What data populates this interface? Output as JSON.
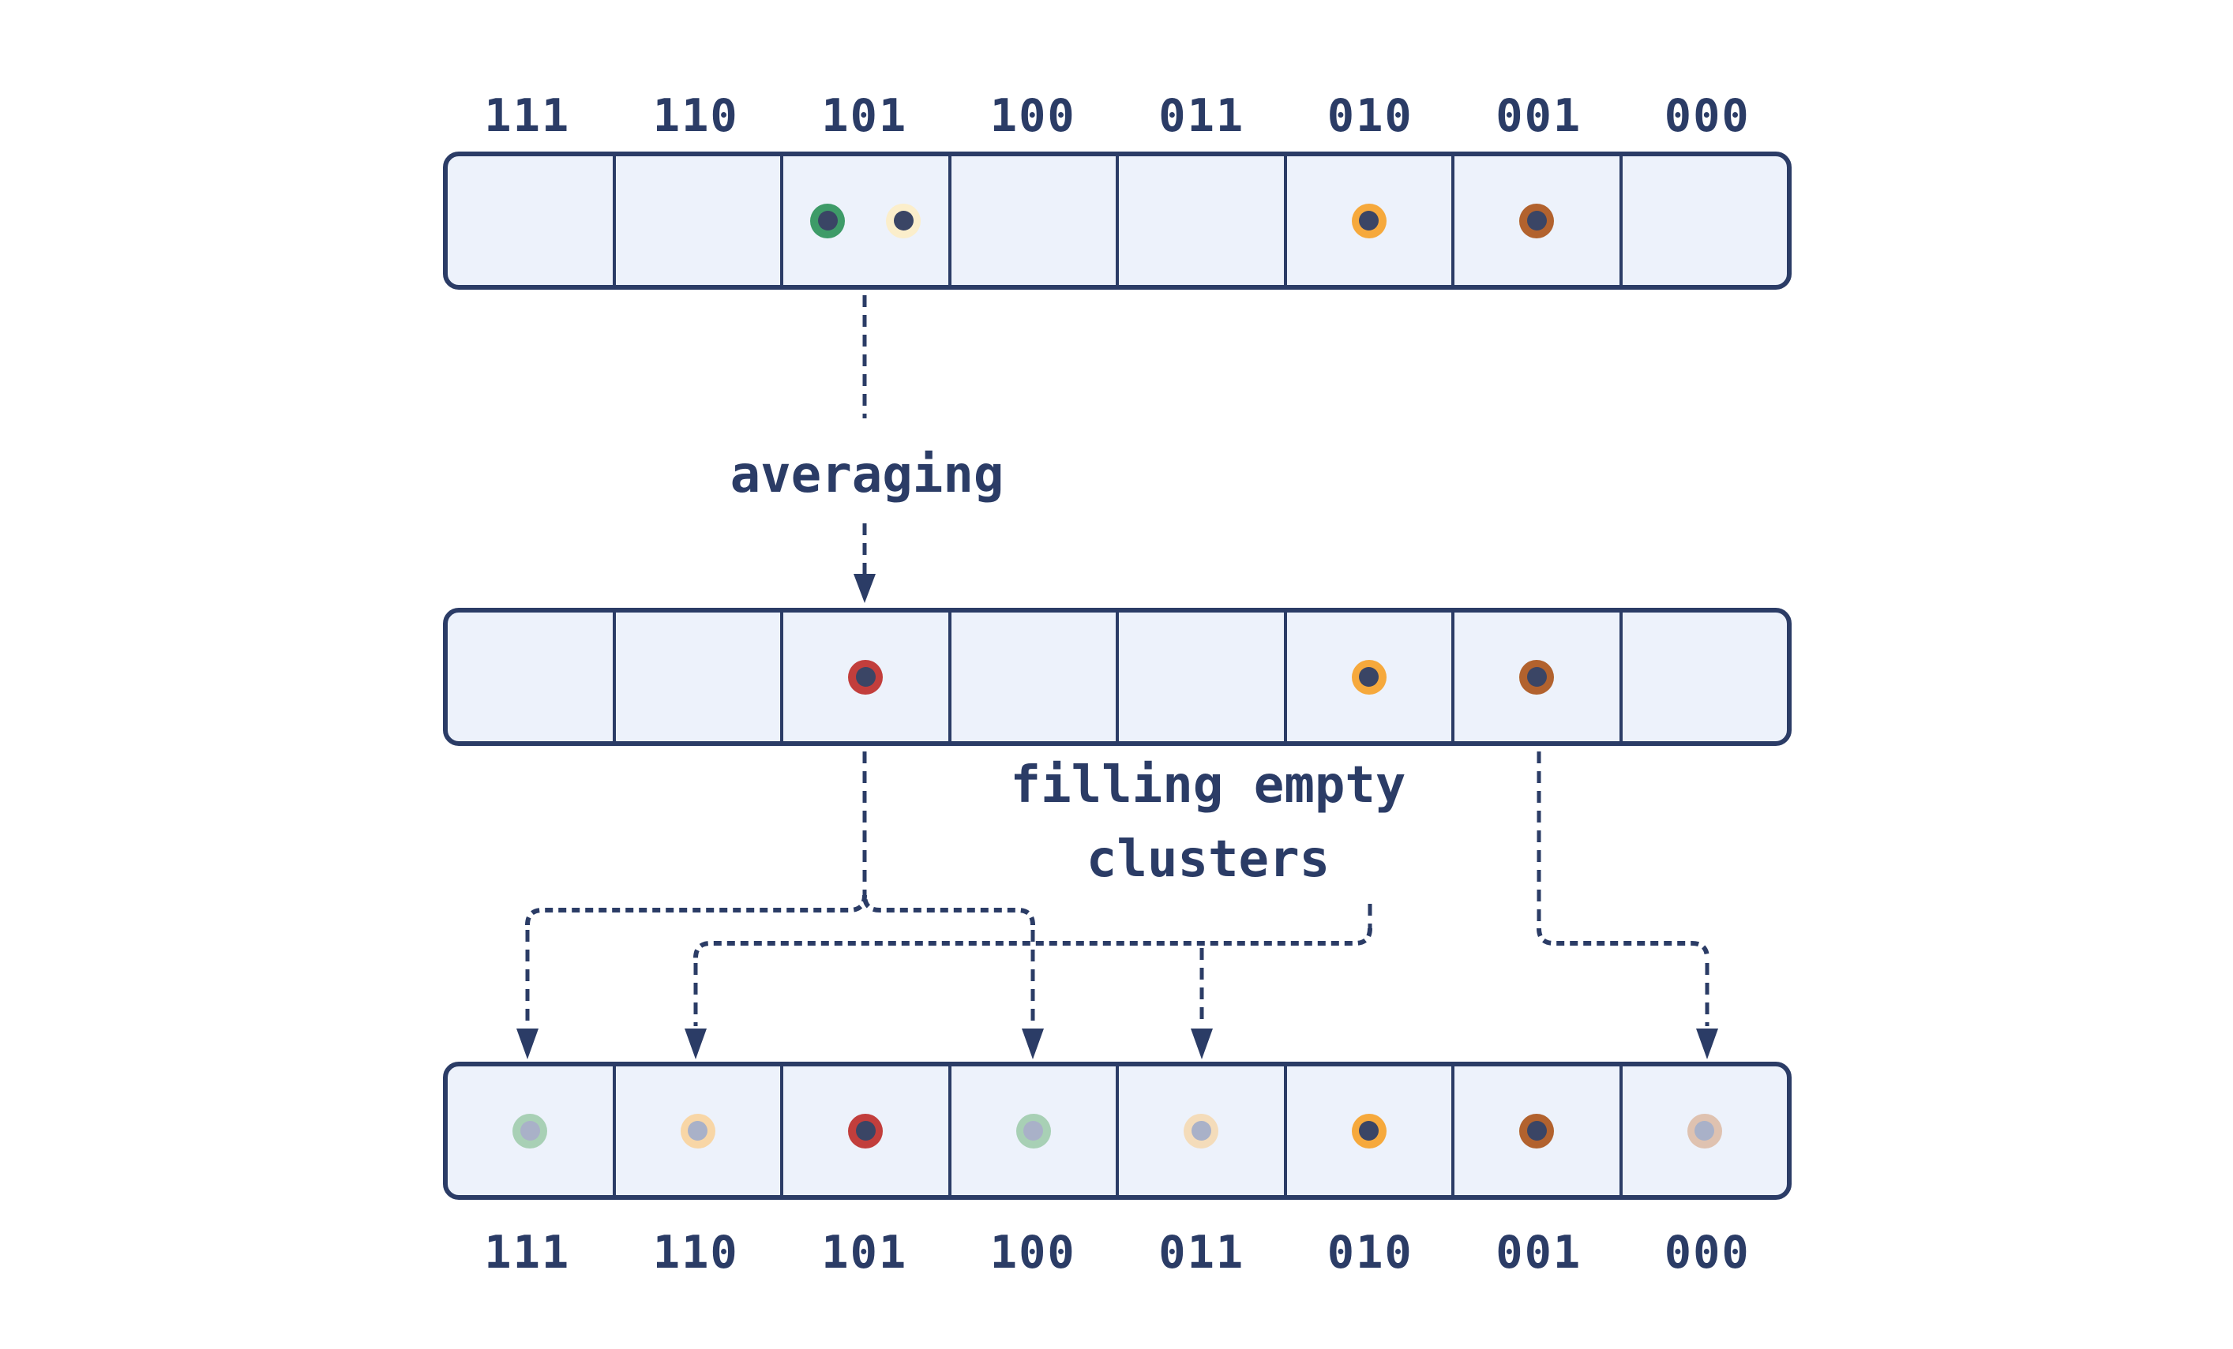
{
  "colors": {
    "navy": "#2b3c66",
    "page_bg": "#ffffff",
    "cell_bg": "#edf2fb",
    "dot_core": "#3a4565",
    "faded_core": "#a9b1c8",
    "green": "#3e9b68",
    "cream": "#fbeecb",
    "orange": "#f6a93c",
    "brown": "#b2622e",
    "red": "#c23e3c",
    "faded_green": "#a8d0b5",
    "faded_peach": "#f8d6a6",
    "faded_cream": "#f4dcba",
    "faded_tan": "#dfc2b0"
  },
  "labels": [
    "111",
    "110",
    "101",
    "100",
    "011",
    "010",
    "001",
    "000"
  ],
  "annotations": {
    "averaging": "averaging",
    "filling_line1": "filling empty",
    "filling_line2": "clusters"
  },
  "rows": {
    "top": {
      "cells": [
        {
          "bin": "111",
          "dots": []
        },
        {
          "bin": "110",
          "dots": []
        },
        {
          "bin": "101",
          "dots": [
            {
              "name": "point-green",
              "ring": "#3e9b68",
              "center": "#3a4565"
            },
            {
              "name": "point-cream",
              "ring": "#fbeecb",
              "center": "#3a4565"
            }
          ]
        },
        {
          "bin": "100",
          "dots": []
        },
        {
          "bin": "011",
          "dots": []
        },
        {
          "bin": "010",
          "dots": [
            {
              "name": "point-orange",
              "ring": "#f6a93c",
              "center": "#3a4565"
            }
          ]
        },
        {
          "bin": "001",
          "dots": [
            {
              "name": "point-brown",
              "ring": "#b2622e",
              "center": "#3a4565"
            }
          ]
        },
        {
          "bin": "000",
          "dots": []
        }
      ]
    },
    "middle": {
      "cells": [
        {
          "bin": "111",
          "dots": []
        },
        {
          "bin": "110",
          "dots": []
        },
        {
          "bin": "101",
          "dots": [
            {
              "name": "centroid-red",
              "ring": "#c23e3c",
              "center": "#3a4565"
            }
          ]
        },
        {
          "bin": "100",
          "dots": []
        },
        {
          "bin": "011",
          "dots": []
        },
        {
          "bin": "010",
          "dots": [
            {
              "name": "centroid-orange",
              "ring": "#f6a93c",
              "center": "#3a4565"
            }
          ]
        },
        {
          "bin": "001",
          "dots": [
            {
              "name": "centroid-brown",
              "ring": "#b2622e",
              "center": "#3a4565"
            }
          ]
        },
        {
          "bin": "000",
          "dots": []
        }
      ]
    },
    "bottom": {
      "cells": [
        {
          "bin": "111",
          "dots": [
            {
              "name": "filled-green-faded",
              "ring": "#a8d0b5",
              "center": "#a9b1c8"
            }
          ]
        },
        {
          "bin": "110",
          "dots": [
            {
              "name": "filled-peach-faded",
              "ring": "#f8d6a6",
              "center": "#a9b1c8"
            }
          ]
        },
        {
          "bin": "101",
          "dots": [
            {
              "name": "centroid-red",
              "ring": "#c23e3c",
              "center": "#3a4565"
            }
          ]
        },
        {
          "bin": "100",
          "dots": [
            {
              "name": "filled-green-faded",
              "ring": "#a8d0b5",
              "center": "#a9b1c8"
            }
          ]
        },
        {
          "bin": "011",
          "dots": [
            {
              "name": "filled-cream-faded",
              "ring": "#f4dcba",
              "center": "#a9b1c8"
            }
          ]
        },
        {
          "bin": "010",
          "dots": [
            {
              "name": "centroid-orange",
              "ring": "#f6a93c",
              "center": "#3a4565"
            }
          ]
        },
        {
          "bin": "001",
          "dots": [
            {
              "name": "centroid-brown",
              "ring": "#b2622e",
              "center": "#3a4565"
            }
          ]
        },
        {
          "bin": "000",
          "dots": [
            {
              "name": "filled-tan-faded",
              "ring": "#dfc2b0",
              "center": "#a9b1c8"
            }
          ]
        }
      ]
    }
  }
}
